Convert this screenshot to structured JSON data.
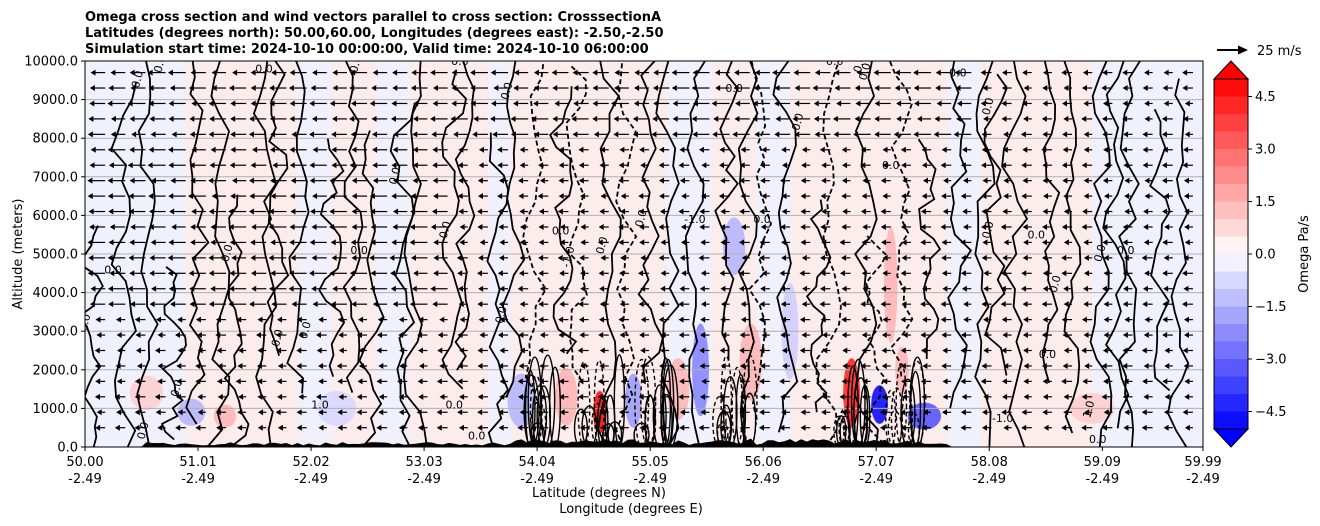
{
  "chart_data": {
    "type": "heatmap",
    "title_lines": [
      "Omega cross section and wind vectors parallel to cross section: CrosssectionA",
      "Latitudes (degrees north): 50.00,60.00, Longitudes (degrees east): -2.50,-2.50",
      "Simulation start time: 2024-10-10 00:00:00, Valid time: 2024-10-10 06:00:00"
    ],
    "xlabel_lines": [
      "Latitude (degrees N)",
      "Longitude (degrees E)"
    ],
    "ylabel": "Altitude (meters)",
    "xlim": [
      50.0,
      59.99
    ],
    "ylim": [
      0,
      10000
    ],
    "x_ticks": [
      {
        "lat": 50.0,
        "lat_label": "50.00",
        "lon_label": "-2.49"
      },
      {
        "lat": 51.01,
        "lat_label": "51.01",
        "lon_label": "-2.49"
      },
      {
        "lat": 52.02,
        "lat_label": "52.02",
        "lon_label": "-2.49"
      },
      {
        "lat": 53.03,
        "lat_label": "53.03",
        "lon_label": "-2.49"
      },
      {
        "lat": 54.04,
        "lat_label": "54.04",
        "lon_label": "-2.49"
      },
      {
        "lat": 55.05,
        "lat_label": "55.05",
        "lon_label": "-2.49"
      },
      {
        "lat": 56.06,
        "lat_label": "56.06",
        "lon_label": "-2.49"
      },
      {
        "lat": 57.07,
        "lat_label": "57.07",
        "lon_label": "-2.49"
      },
      {
        "lat": 58.08,
        "lat_label": "58.08",
        "lon_label": "-2.49"
      },
      {
        "lat": 59.09,
        "lat_label": "59.09",
        "lon_label": "-2.49"
      },
      {
        "lat": 59.99,
        "lat_label": "59.99",
        "lon_label": "-2.49"
      }
    ],
    "y_ticks": [
      {
        "value": 0,
        "label": "0.0"
      },
      {
        "value": 1000,
        "label": "1000.0"
      },
      {
        "value": 2000,
        "label": "2000.0"
      },
      {
        "value": 3000,
        "label": "3000.0"
      },
      {
        "value": 4000,
        "label": "4000.0"
      },
      {
        "value": 5000,
        "label": "5000.0"
      },
      {
        "value": 6000,
        "label": "6000.0"
      },
      {
        "value": 7000,
        "label": "7000.0"
      },
      {
        "value": 8000,
        "label": "8000.0"
      },
      {
        "value": 9000,
        "label": "9000.0"
      },
      {
        "value": 10000,
        "label": "10000.0"
      }
    ],
    "grid": "horizontal",
    "colorbar": {
      "label": "Omega Pa/s",
      "range": [
        -5.0,
        5.0
      ],
      "levels": 20,
      "ticks": [
        {
          "value": 4.5,
          "label": "4.5"
        },
        {
          "value": 3.0,
          "label": "3.0"
        },
        {
          "value": 1.5,
          "label": "1.5"
        },
        {
          "value": 0.0,
          "label": "0.0"
        },
        {
          "value": -1.5,
          "label": "−1.5"
        },
        {
          "value": -3.0,
          "label": "−3.0"
        },
        {
          "value": -4.5,
          "label": "−4.5"
        }
      ],
      "colormap": "bwr",
      "extend": "both"
    },
    "quiver_key": {
      "label": "25 m/s",
      "speed_ms": 25
    },
    "omega_anomalies": [
      {
        "lat": 50.55,
        "alt": 1400,
        "w": 0.3,
        "h": 900,
        "value": 1.0
      },
      {
        "lat": 50.95,
        "alt": 900,
        "w": 0.25,
        "h": 700,
        "value": -1.5
      },
      {
        "lat": 51.25,
        "alt": 800,
        "w": 0.2,
        "h": 600,
        "value": 1.5
      },
      {
        "lat": 52.25,
        "alt": 1000,
        "w": 0.35,
        "h": 900,
        "value": -0.8
      },
      {
        "lat": 53.9,
        "alt": 1200,
        "w": 0.25,
        "h": 1400,
        "value": -1.5
      },
      {
        "lat": 54.3,
        "alt": 1300,
        "w": 0.2,
        "h": 1500,
        "value": 1.5
      },
      {
        "lat": 54.6,
        "alt": 900,
        "w": 0.12,
        "h": 1100,
        "value": 5.0
      },
      {
        "lat": 54.9,
        "alt": 1200,
        "w": 0.15,
        "h": 1400,
        "value": -2.0
      },
      {
        "lat": 55.3,
        "alt": 1500,
        "w": 0.2,
        "h": 1600,
        "value": 1.5
      },
      {
        "lat": 55.5,
        "alt": 2000,
        "w": 0.15,
        "h": 2400,
        "value": -2.5
      },
      {
        "lat": 55.95,
        "alt": 2200,
        "w": 0.2,
        "h": 2000,
        "value": 1.5
      },
      {
        "lat": 56.3,
        "alt": 3000,
        "w": 0.15,
        "h": 2500,
        "value": -1.0
      },
      {
        "lat": 56.85,
        "alt": 1400,
        "w": 0.15,
        "h": 1800,
        "value": 4.5
      },
      {
        "lat": 57.1,
        "alt": 1100,
        "w": 0.15,
        "h": 1000,
        "value": -5.0
      },
      {
        "lat": 57.5,
        "alt": 800,
        "w": 0.3,
        "h": 700,
        "value": -3.5
      },
      {
        "lat": 57.3,
        "alt": 2000,
        "w": 0.12,
        "h": 1200,
        "value": 1.5
      },
      {
        "lat": 59.0,
        "alt": 1000,
        "w": 0.4,
        "h": 800,
        "value": 1.0
      },
      {
        "lat": 55.8,
        "alt": 5200,
        "w": 0.2,
        "h": 1500,
        "value": -1.5
      },
      {
        "lat": 57.2,
        "alt": 4200,
        "w": 0.12,
        "h": 3000,
        "value": 1.5
      }
    ],
    "contour_labels": [
      {
        "lat": 50.03,
        "alt": 3200,
        "text": "0.0"
      },
      {
        "lat": 50.5,
        "alt": 9500,
        "text": "0.0"
      },
      {
        "lat": 50.25,
        "alt": 4500,
        "text": "0.0"
      },
      {
        "lat": 50.55,
        "alt": 400,
        "text": "0.0"
      },
      {
        "lat": 50.7,
        "alt": 9900,
        "text": "0.0"
      },
      {
        "lat": 50.85,
        "alt": 1500,
        "text": "0.0"
      },
      {
        "lat": 51.3,
        "alt": 5000,
        "text": "0.0"
      },
      {
        "lat": 51.6,
        "alt": 9700,
        "text": "0.0"
      },
      {
        "lat": 51.75,
        "alt": 2800,
        "text": "0.0"
      },
      {
        "lat": 52.0,
        "alt": 3000,
        "text": "0.0"
      },
      {
        "lat": 52.1,
        "alt": 1000,
        "text": "1.0"
      },
      {
        "lat": 52.45,
        "alt": 5000,
        "text": "0.0"
      },
      {
        "lat": 52.45,
        "alt": 9900,
        "text": "0.0"
      },
      {
        "lat": 52.8,
        "alt": 7000,
        "text": "0.0"
      },
      {
        "lat": 53.25,
        "alt": 5600,
        "text": "0.0"
      },
      {
        "lat": 53.35,
        "alt": 9900,
        "text": "0.0"
      },
      {
        "lat": 53.3,
        "alt": 1000,
        "text": "0.0"
      },
      {
        "lat": 53.5,
        "alt": 200,
        "text": "0.0"
      },
      {
        "lat": 53.75,
        "alt": 3400,
        "text": "0.0"
      },
      {
        "lat": 53.8,
        "alt": 9200,
        "text": "0.0"
      },
      {
        "lat": 54.25,
        "alt": 5500,
        "text": "0.0"
      },
      {
        "lat": 54.35,
        "alt": 4900,
        "text": "-1.0"
      },
      {
        "lat": 54.65,
        "alt": 5200,
        "text": "0.0"
      },
      {
        "lat": 55.0,
        "alt": 5900,
        "text": "0.0"
      },
      {
        "lat": 55.45,
        "alt": 5800,
        "text": "-1.0"
      },
      {
        "lat": 55.8,
        "alt": 9200,
        "text": "0.0"
      },
      {
        "lat": 56.05,
        "alt": 5800,
        "text": "0.0"
      },
      {
        "lat": 56.4,
        "alt": 8400,
        "text": "0.0"
      },
      {
        "lat": 56.7,
        "alt": 9900,
        "text": "0.0"
      },
      {
        "lat": 56.95,
        "alt": 9900,
        "text": "0.0"
      },
      {
        "lat": 57.0,
        "alt": 9700,
        "text": "0.0"
      },
      {
        "lat": 57.2,
        "alt": 7200,
        "text": "0.0"
      },
      {
        "lat": 57.8,
        "alt": 9600,
        "text": "0.0"
      },
      {
        "lat": 58.1,
        "alt": 8800,
        "text": "0.0"
      },
      {
        "lat": 58.1,
        "alt": 5600,
        "text": "0.0"
      },
      {
        "lat": 58.5,
        "alt": 5400,
        "text": "0.0"
      },
      {
        "lat": 58.7,
        "alt": 4200,
        "text": "0.0"
      },
      {
        "lat": 59.1,
        "alt": 5000,
        "text": "0.0"
      },
      {
        "lat": 59.3,
        "alt": 5000,
        "text": "0.0"
      },
      {
        "lat": 58.2,
        "alt": 650,
        "text": "-1.0"
      },
      {
        "lat": 58.6,
        "alt": 2300,
        "text": "0.0"
      },
      {
        "lat": 59.0,
        "alt": 950,
        "text": "1.0"
      },
      {
        "lat": 59.05,
        "alt": 100,
        "text": "0.0"
      }
    ]
  }
}
